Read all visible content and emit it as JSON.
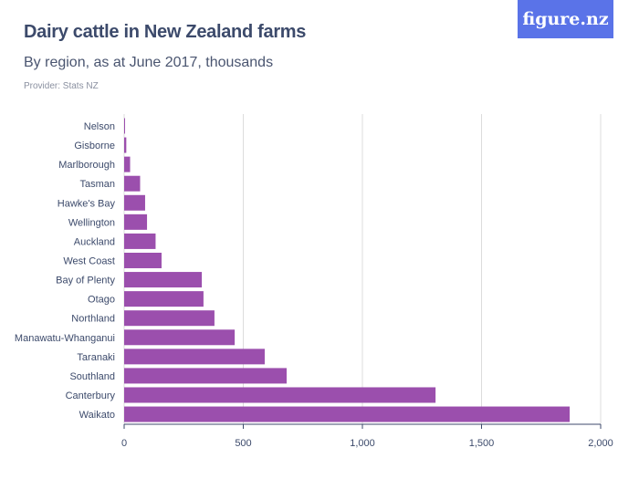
{
  "title": "Dairy cattle in New Zealand farms",
  "subtitle": "By region, as at June 2017, thousands",
  "provider": "Provider: Stats NZ",
  "logo": "figure.nz",
  "chart_data": {
    "type": "bar",
    "orientation": "horizontal",
    "categories": [
      "Nelson",
      "Gisborne",
      "Marlborough",
      "Tasman",
      "Hawke's Bay",
      "Wellington",
      "Auckland",
      "West Coast",
      "Bay of Plenty",
      "Otago",
      "Northland",
      "Manawatu-Whanganui",
      "Taranaki",
      "Southland",
      "Canterbury",
      "Waikato"
    ],
    "values": [
      3,
      9,
      25,
      67,
      88,
      96,
      132,
      157,
      326,
      333,
      379,
      464,
      590,
      682,
      1307,
      1870
    ],
    "xlim": [
      0,
      2000
    ],
    "xticks": [
      0,
      500,
      1000,
      1500,
      2000
    ],
    "xtick_labels": [
      "0",
      "500",
      "1,000",
      "1,500",
      "2,000"
    ],
    "grid": true,
    "color": "#9b4fad"
  }
}
